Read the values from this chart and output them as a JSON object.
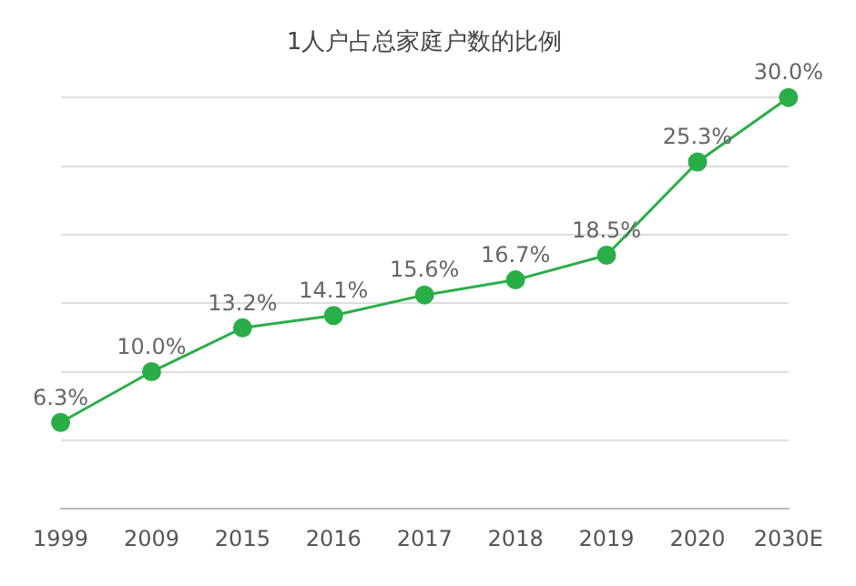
{
  "chart_data": {
    "type": "line",
    "title": "1人户占总家庭户数的比例",
    "categories": [
      "1999",
      "2009",
      "2015",
      "2016",
      "2017",
      "2018",
      "2019",
      "2020",
      "2030E"
    ],
    "series": [
      {
        "color": "#2aae48",
        "values": [
          6.3,
          10.0,
          13.2,
          14.1,
          15.6,
          16.7,
          18.5,
          25.3,
          30.0
        ],
        "value_labels": [
          "6.3%",
          "10.0%",
          "13.2%",
          "14.1%",
          "15.6%",
          "16.7%",
          "18.5%",
          "25.3%",
          "30.0%"
        ]
      }
    ],
    "grid": "y",
    "tick_labels": "x",
    "marker": "circle",
    "line_style": "solid",
    "legend": false
  }
}
